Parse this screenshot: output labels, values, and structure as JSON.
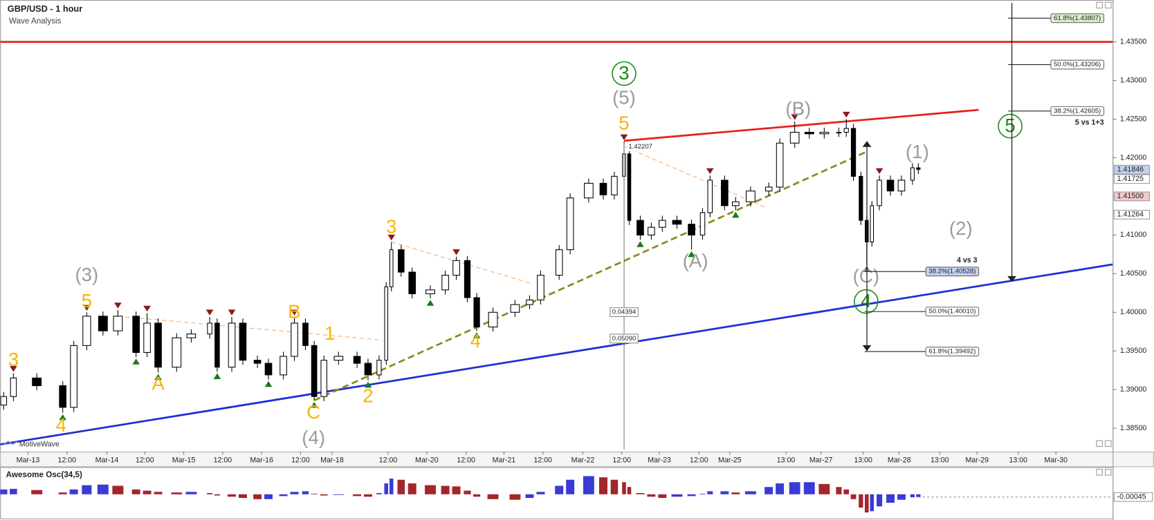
{
  "chart_data": [
    {
      "type": "candlestick",
      "title": "GBP/USD - 1 hour",
      "subtitle": "Wave Analysis",
      "watermark": "MotiveWave",
      "x": [
        -7.5,
        -4.5,
        2.7,
        10.7,
        14.1,
        18.1,
        23.1,
        27.7,
        33.3,
        36.7,
        40.1,
        45.8,
        50.3,
        56.0,
        58.3,
        62.8,
        66.2,
        70.7,
        74.1,
        78.7,
        82.1,
        85.5,
        88.2,
        91.2,
        95.7,
        101.4,
        104.8,
        108.2,
        110.4,
        112.0,
        115.0,
        118.4,
        124.0,
        128.6,
        132.0,
        135.4,
        138.3,
        143.3,
        150.1,
        154.6,
        158.0,
        163.7,
        167.1,
        172.8,
        177.3,
        180.7,
        183.7,
        185.3,
        188.7,
        192.1,
        195.5,
        200.0,
        204.5,
        207.9,
        210.2,
        214.7,
        218.1,
        222.7,
        228.3,
        231.7,
        236.3,
        240.8,
        245.4,
        249.9,
        252.2,
        254.4,
        256.7,
        258.5,
        260.1,
        262.4,
        265.8,
        269.2,
        272.6,
        274.4
      ],
      "open": [
        1.388,
        1.3891,
        1.3915,
        1.3905,
        1.3877,
        1.3957,
        1.3995,
        1.3976,
        1.3995,
        1.3948,
        1.3986,
        1.3929,
        1.3967,
        1.3972,
        1.3986,
        1.3929,
        1.3986,
        1.3938,
        1.3934,
        1.3919,
        1.3943,
        1.3986,
        1.3957,
        1.3891,
        1.3938,
        1.3943,
        1.3934,
        1.3919,
        1.3938,
        1.4033,
        1.4081,
        1.4052,
        1.4024,
        1.4029,
        1.4048,
        1.4067,
        1.4019,
        1.3981,
        1.4,
        1.401,
        1.4016,
        1.4048,
        1.4081,
        1.4148,
        1.4167,
        1.4152,
        1.4176,
        1.4205,
        1.4119,
        1.41,
        1.411,
        1.4119,
        1.4114,
        1.41,
        1.4129,
        1.4171,
        1.4138,
        1.4143,
        1.4157,
        1.4162,
        1.4219,
        1.4233,
        1.4231,
        1.4233,
        1.4233,
        1.4238,
        1.4176,
        1.4119,
        1.4091,
        1.4138,
        1.4171,
        1.4157,
        1.4171,
        1.4187
      ],
      "high": [
        1.3897,
        1.3921,
        1.3921,
        1.3911,
        1.3963,
        1.4,
        1.4001,
        1.4003,
        1.4001,
        1.3999,
        1.3992,
        1.3973,
        1.3978,
        1.3994,
        1.3992,
        1.3994,
        1.3992,
        1.3944,
        1.394,
        1.3949,
        1.3994,
        1.3992,
        1.3963,
        1.3944,
        1.3949,
        1.3949,
        1.394,
        1.3944,
        1.4039,
        1.4091,
        1.4087,
        1.4058,
        1.4035,
        1.4054,
        1.4072,
        1.4073,
        1.4025,
        1.4006,
        1.4016,
        1.4022,
        1.4054,
        1.4087,
        1.4154,
        1.4173,
        1.4173,
        1.4182,
        1.42207,
        1.4211,
        1.4125,
        1.4116,
        1.4125,
        1.4125,
        1.412,
        1.4135,
        1.4177,
        1.4177,
        1.4149,
        1.4163,
        1.4168,
        1.4225,
        1.4247,
        1.4239,
        1.4239,
        1.4239,
        1.425,
        1.4244,
        1.4182,
        1.4125,
        1.4144,
        1.4177,
        1.4177,
        1.4177,
        1.4193,
        1.4193
      ],
      "low": [
        1.3874,
        1.3885,
        1.3899,
        1.387,
        1.3871,
        1.3951,
        1.397,
        1.397,
        1.3942,
        1.3942,
        1.3922,
        1.3923,
        1.3961,
        1.3966,
        1.3923,
        1.3923,
        1.3932,
        1.3928,
        1.3913,
        1.3913,
        1.3937,
        1.3951,
        1.3886,
        1.3885,
        1.3932,
        1.3928,
        1.3912,
        1.3913,
        1.3932,
        1.4027,
        1.4046,
        1.4018,
        1.4018,
        1.4023,
        1.4042,
        1.4013,
        1.3976,
        1.3975,
        1.3994,
        1.4004,
        1.401,
        1.4042,
        1.4075,
        1.4142,
        1.4146,
        1.4146,
        1.417,
        1.4113,
        1.4094,
        1.4094,
        1.4104,
        1.4108,
        1.4081,
        1.4094,
        1.4123,
        1.4132,
        1.4132,
        1.4137,
        1.4151,
        1.4156,
        1.4213,
        1.4225,
        1.4225,
        1.4227,
        1.4227,
        1.417,
        1.4113,
        1.4062,
        1.4085,
        1.4132,
        1.4151,
        1.4151,
        1.4165,
        1.4179
      ],
      "close": [
        1.3891,
        1.3915,
        1.3905,
        1.3877,
        1.3957,
        1.3995,
        1.3976,
        1.3995,
        1.3948,
        1.3986,
        1.3929,
        1.3967,
        1.3972,
        1.3986,
        1.3929,
        1.3986,
        1.3938,
        1.3934,
        1.3919,
        1.3943,
        1.3986,
        1.3957,
        1.3891,
        1.3938,
        1.3943,
        1.3934,
        1.3919,
        1.3938,
        1.4033,
        1.4081,
        1.4052,
        1.4024,
        1.4029,
        1.4048,
        1.4067,
        1.4019,
        1.3981,
        1.4,
        1.401,
        1.4016,
        1.4048,
        1.4081,
        1.4148,
        1.4167,
        1.4152,
        1.4176,
        1.4205,
        1.4119,
        1.41,
        1.411,
        1.4119,
        1.4114,
        1.41,
        1.4129,
        1.4171,
        1.4138,
        1.4143,
        1.4157,
        1.4162,
        1.4219,
        1.4233,
        1.4231,
        1.4233,
        1.4233,
        1.4238,
        1.4176,
        1.4119,
        1.4091,
        1.4138,
        1.4171,
        1.4157,
        1.4171,
        1.4187,
        1.4185
      ],
      "up_color": "#ffffff",
      "down_color": "#000000",
      "xlim": [
        -8.6,
        334.3
      ],
      "xticks": [
        {
          "value": 0,
          "label": "Mar-13"
        },
        {
          "value": 12,
          "label": "12:00"
        },
        {
          "value": 24.3,
          "label": "Mar-14"
        },
        {
          "value": 36,
          "label": "12:00"
        },
        {
          "value": 48,
          "label": "Mar-15"
        },
        {
          "value": 60,
          "label": "12:00"
        },
        {
          "value": 72,
          "label": "Mar-16"
        },
        {
          "value": 84,
          "label": "12:00"
        },
        {
          "value": 93.7,
          "label": "Mar-18"
        },
        {
          "value": 111,
          "label": "12:00"
        },
        {
          "value": 122.9,
          "label": "Mar-20"
        },
        {
          "value": 135,
          "label": "12:00"
        },
        {
          "value": 146.7,
          "label": "Mar-21"
        },
        {
          "value": 158.7,
          "label": "12:00"
        },
        {
          "value": 171,
          "label": "Mar-22"
        },
        {
          "value": 183,
          "label": "12:00"
        },
        {
          "value": 194.6,
          "label": "Mar-23"
        },
        {
          "value": 206.8,
          "label": "12:00"
        },
        {
          "value": 216.3,
          "label": "Mar-25"
        },
        {
          "value": 233.6,
          "label": "13:00"
        },
        {
          "value": 244.4,
          "label": "Mar-27"
        },
        {
          "value": 257.4,
          "label": "13:00"
        },
        {
          "value": 268.5,
          "label": "Mar-28"
        },
        {
          "value": 281,
          "label": "13:00"
        },
        {
          "value": 292.5,
          "label": "Mar-29"
        },
        {
          "value": 305.2,
          "label": "13:00"
        },
        {
          "value": 316.8,
          "label": "Mar-30"
        }
      ],
      "ylim": [
        1.38196,
        1.44042
      ],
      "yticks": [
        {
          "value": 1.385,
          "label": "1.38500"
        },
        {
          "value": 1.39,
          "label": "1.39000"
        },
        {
          "value": 1.395,
          "label": "1.39500"
        },
        {
          "value": 1.4,
          "label": "1.40000"
        },
        {
          "value": 1.405,
          "label": "1.40500"
        },
        {
          "value": 1.41,
          "label": "1.41000"
        },
        {
          "value": 1.415,
          "label": "1.41500"
        },
        {
          "value": 1.42,
          "label": "1.42000"
        },
        {
          "value": 1.425,
          "label": "1.42500"
        },
        {
          "value": 1.43,
          "label": "1.43000"
        },
        {
          "value": 1.435,
          "label": "1.43500"
        }
      ],
      "trend_lines": [
        {
          "color": "#e8201e",
          "style": "solid",
          "x": [
            -8.6,
            334.3
          ],
          "y": [
            1.435,
            1.435
          ]
        },
        {
          "color": "#e8201e",
          "style": "solid",
          "x": [
            183.7,
            293
          ],
          "y": [
            1.4222,
            1.4262
          ]
        },
        {
          "color": "#1a2fd6",
          "style": "solid",
          "x": [
            -8.6,
            334.3
          ],
          "y": [
            1.3829,
            1.4062
          ]
        },
        {
          "color": "#8c8a1a",
          "style": "dashed",
          "x": [
            88.2,
            258
          ],
          "y": [
            1.3886,
            1.4207
          ]
        },
        {
          "color": "#f5a86a",
          "style": "thin-dashed",
          "x": [
            27.7,
            109.3
          ],
          "y": [
            1.3995,
            1.3964
          ]
        },
        {
          "color": "#f5a86a",
          "style": "thin-dashed",
          "x": [
            112,
            154.6
          ],
          "y": [
            1.4091,
            1.4038
          ]
        },
        {
          "color": "#f5a86a",
          "style": "thin-dashed",
          "x": [
            184.1,
            227.2
          ],
          "y": [
            1.4214,
            1.4136
          ]
        }
      ],
      "pivot_highs": [
        1,
        5,
        7,
        9,
        13,
        15,
        20,
        29,
        34,
        46,
        54,
        60,
        64,
        69
      ],
      "pivot_lows": [
        3,
        8,
        10,
        14,
        18,
        22,
        26,
        32,
        36,
        48,
        52,
        56,
        67
      ],
      "annotations": [
        {
          "text": "3",
          "x": -4.5,
          "y": 1.3938,
          "color": "#f7b500"
        },
        {
          "text": "4",
          "x": 10.2,
          "y": 1.3853,
          "color": "#f7b500"
        },
        {
          "text": "5",
          "x": 18.1,
          "y": 1.4014,
          "color": "#f7b500"
        },
        {
          "text": "(3)",
          "x": 18.1,
          "y": 1.4048,
          "color": "#9a9a9a"
        },
        {
          "text": "A",
          "x": 40.1,
          "y": 1.3907,
          "color": "#f7b500"
        },
        {
          "text": "B",
          "x": 82.1,
          "y": 1.4,
          "color": "#f7b500"
        },
        {
          "text": "1",
          "x": 93.0,
          "y": 1.3972,
          "color": "#f7b500"
        },
        {
          "text": "C",
          "x": 88.0,
          "y": 1.387,
          "color": "#f7b500"
        },
        {
          "text": "(4)",
          "x": 88.0,
          "y": 1.3837,
          "color": "#9a9a9a"
        },
        {
          "text": "2",
          "x": 104.8,
          "y": 1.3891,
          "color": "#f7b500"
        },
        {
          "text": "3",
          "x": 112.0,
          "y": 1.411,
          "color": "#f7b500"
        },
        {
          "text": "4",
          "x": 137.9,
          "y": 1.3962,
          "color": "#f7b500"
        },
        {
          "text": "5",
          "x": 183.7,
          "y": 1.4244,
          "color": "#f7b500"
        },
        {
          "text": "(5)",
          "x": 183.7,
          "y": 1.4277,
          "color": "#9a9a9a"
        },
        {
          "text": "3",
          "x": 183.7,
          "y": 1.4309,
          "color": "#1a8c1a",
          "circled": true
        },
        {
          "text": "(A)",
          "x": 205.7,
          "y": 1.4066,
          "color": "#9a9a9a"
        },
        {
          "text": "(B)",
          "x": 237.4,
          "y": 1.4263,
          "color": "#9a9a9a"
        },
        {
          "text": "(C)",
          "x": 258.3,
          "y": 1.4046,
          "color": "#9a9a9a"
        },
        {
          "text": "4",
          "x": 258.3,
          "y": 1.4014,
          "color": "#1a8c1a",
          "circled": true
        },
        {
          "text": "(1)",
          "x": 274.1,
          "y": 1.4207,
          "color": "#9a9a9a"
        },
        {
          "text": "(2)",
          "x": 287.5,
          "y": 1.4108,
          "color": "#9a9a9a"
        },
        {
          "text": "5",
          "x": 302.7,
          "y": 1.4241,
          "color": "#1a8c1a",
          "circled": true
        }
      ],
      "fib_upper": [
        {
          "value": 1.43807,
          "label": "61.8%(1.43807)",
          "color": "#d6f0cf"
        },
        {
          "value": 1.43206,
          "label": "50.0%(1.43206)"
        },
        {
          "value": 1.42605,
          "label": "38.2%(1.42605)"
        }
      ],
      "fib_lower": [
        {
          "value": 1.40528,
          "label": "38.2%(1.40528)",
          "color": "#c3cff2"
        },
        {
          "value": 1.4001,
          "label": "50.0%(1.40010)"
        },
        {
          "value": 1.39492,
          "label": "61.8%(1.39492)"
        }
      ],
      "fib_notes": [
        "5 vs 1+3",
        "4 vs 3"
      ],
      "price_tags": [
        {
          "value": 1.41846,
          "color": "#c3cff2"
        },
        {
          "value": 1.41725,
          "color": "#ffffff"
        },
        {
          "value": 1.415,
          "label": "1.41500",
          "color": "#f3c9c9"
        },
        {
          "value": 1.41264,
          "color": "#ffffff"
        }
      ],
      "measurements": [
        1.42207,
        0.04394,
        {
          "value": 0.0509,
          "label": "0.05090"
        }
      ]
    },
    {
      "type": "bar",
      "title": "Awesome Osc(34,5)",
      "x": [
        -7.5,
        -4.5,
        2.7,
        10.7,
        14.1,
        18.1,
        23.1,
        27.7,
        33.3,
        36.7,
        40.1,
        45.8,
        50.3,
        56.0,
        58.3,
        62.8,
        66.2,
        70.7,
        74.1,
        78.7,
        82.1,
        85.5,
        88.2,
        91.2,
        95.7,
        101.4,
        104.8,
        108.2,
        110.4,
        112.0,
        115.0,
        118.4,
        124.0,
        128.6,
        132.0,
        135.4,
        138.3,
        143.3,
        150.1,
        154.6,
        158.0,
        163.7,
        167.1,
        172.8,
        177.3,
        180.7,
        183.7,
        185.3,
        188.7,
        192.1,
        195.5,
        200.0,
        204.5,
        207.9,
        210.2,
        214.7,
        218.1,
        222.7,
        228.3,
        231.7,
        236.3,
        240.8,
        245.4,
        249.9,
        252.2,
        254.4,
        256.7,
        258.5,
        260.1,
        262.4,
        265.8,
        269.2,
        272.6,
        274.4
      ],
      "values": [
        0.0008,
        0.0009,
        0.0007,
        0.0003,
        0.0008,
        0.0015,
        0.0016,
        0.0014,
        0.0008,
        0.0006,
        0.0004,
        0.0003,
        0.0004,
        0.0002,
        -0.0002,
        -0.0004,
        -0.0006,
        -0.0008,
        -0.0008,
        -0.0003,
        0.0004,
        0.0005,
        0.0001,
        -0.0002,
        -0.0001,
        -0.0003,
        -0.0004,
        0.0002,
        0.0018,
        0.0026,
        0.0024,
        0.0018,
        0.0015,
        0.0014,
        0.0013,
        0.0006,
        -0.0004,
        -0.0008,
        -0.0009,
        -0.0006,
        0.0004,
        0.0014,
        0.0024,
        0.003,
        0.0028,
        0.0024,
        0.002,
        0.0012,
        0.0002,
        -0.0004,
        -0.0006,
        -0.0004,
        -0.0003,
        0.0001,
        0.0005,
        0.0005,
        0.0003,
        0.0005,
        0.0012,
        0.0018,
        0.002,
        0.002,
        0.0017,
        0.0012,
        0.0008,
        -0.0008,
        -0.0022,
        -0.003,
        -0.0028,
        -0.002,
        -0.0014,
        -0.0009,
        -0.0005,
        -0.00045
      ],
      "xlim": [
        -8.6,
        334.3
      ],
      "ylim": [
        -0.004,
        0.004
      ],
      "up_color": "#3a3ad6",
      "down_color": "#a3262a"
    }
  ]
}
